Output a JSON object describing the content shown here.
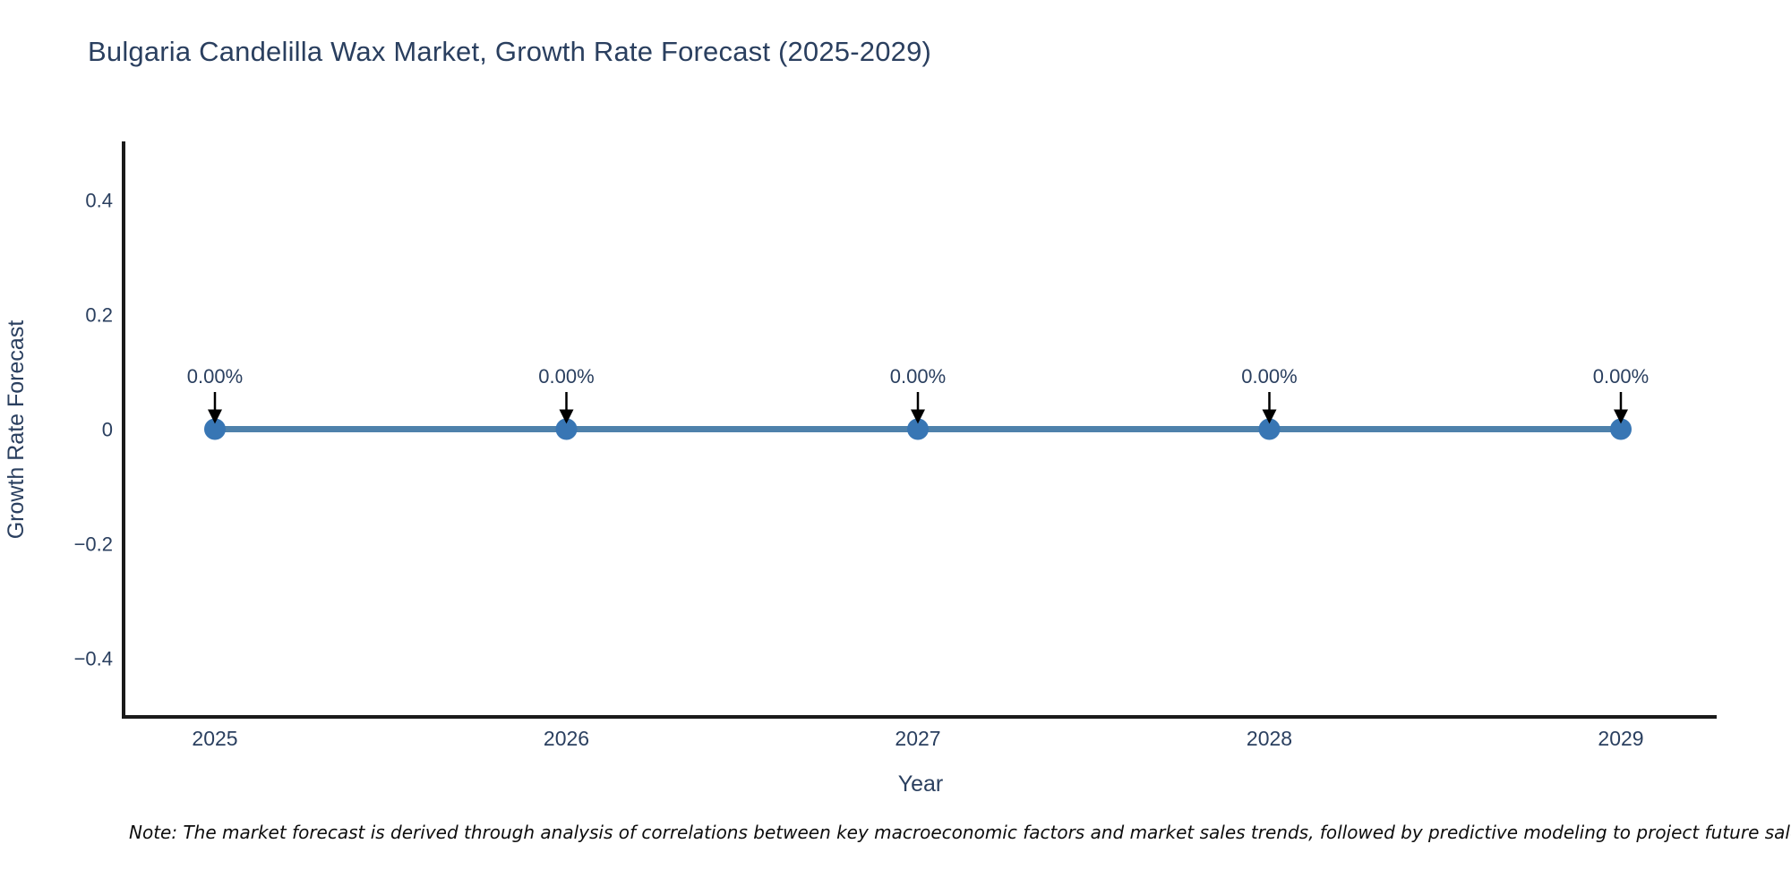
{
  "title": "Bulgaria Candelilla Wax Market, Growth Rate Forecast (2025-2029)",
  "note": "Note: The market forecast is derived through analysis of correlations between key macroeconomic factors and market sales trends, followed by predictive modeling to project future sales.",
  "colors": {
    "background": "#ffffff",
    "title_text": "#2a3f5f",
    "axis_text": "#2a3f5f",
    "axis_line": "#1a1a1a",
    "line": "#4e81ab",
    "marker": "#3876b4",
    "annotation_arrow": "#000000",
    "note_text": "#0d0d0d"
  },
  "chart_data": {
    "type": "line",
    "title": "Bulgaria Candelilla Wax Market, Growth Rate Forecast (2025-2029)",
    "x": [
      2025,
      2026,
      2027,
      2028,
      2029
    ],
    "series": [
      {
        "name": "Growth Rate Forecast",
        "values": [
          0,
          0,
          0,
          0,
          0
        ],
        "point_labels": [
          "0.00%",
          "0.00%",
          "0.00%",
          "0.00%",
          "0.00%"
        ]
      }
    ],
    "xlabel": "Year",
    "ylabel": "Growth Rate Forecast",
    "yticks": [
      0.4,
      0.2,
      0,
      -0.2,
      -0.4
    ],
    "ytick_labels": [
      "0.4",
      "0.2",
      "0",
      "−0.2",
      "−0.4"
    ],
    "ylim": [
      -0.502,
      0.502
    ],
    "grid": false,
    "legend_position": "none",
    "marker_style": "circle",
    "annotation_arrows": "down"
  }
}
